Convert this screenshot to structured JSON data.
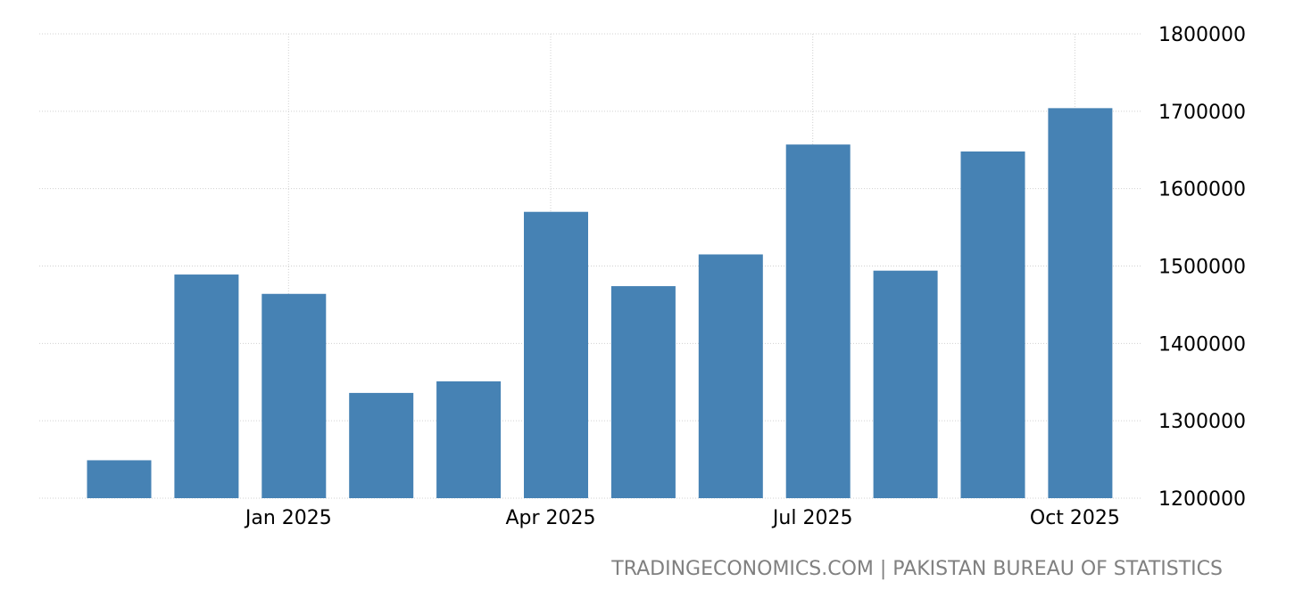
{
  "chart_data": {
    "type": "bar",
    "categories": [
      "Nov 2024",
      "Dec 2024",
      "Jan 2025",
      "Feb 2025",
      "Mar 2025",
      "Apr 2025",
      "May 2025",
      "Jun 2025",
      "Jul 2025",
      "Aug 2025",
      "Sep 2025",
      "Oct 2025"
    ],
    "values": [
      1249000,
      1489000,
      1464000,
      1336000,
      1351000,
      1570000,
      1474000,
      1515000,
      1657000,
      1494000,
      1648000,
      1704000
    ],
    "x_tick_labels": [
      "Jan 2025",
      "Apr 2025",
      "Jul 2025",
      "Oct 2025"
    ],
    "y_ticks": [
      1200000,
      1300000,
      1400000,
      1500000,
      1600000,
      1700000,
      1800000
    ],
    "ylim": [
      1200000,
      1800000
    ],
    "y_axis_side": "right",
    "grid": true,
    "bar_color": "#4682b4"
  },
  "source": "TRADINGECONOMICS.COM | PAKISTAN BUREAU OF STATISTICS"
}
